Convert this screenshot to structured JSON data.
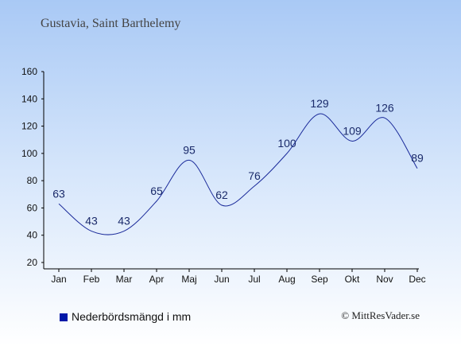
{
  "header": {
    "location": "Gustavia, Saint Barthelemy"
  },
  "legend": {
    "label": "Nederbördsmängd i mm"
  },
  "footer": {
    "copyright": "© MittResVader.se"
  },
  "colors": {
    "line": "#1a2a9a",
    "legend_swatch": "#0018a8",
    "axis": "#000000"
  },
  "chart_data": {
    "type": "line",
    "categories": [
      "Jan",
      "Feb",
      "Mar",
      "Apr",
      "Maj",
      "Jun",
      "Jul",
      "Aug",
      "Sep",
      "Okt",
      "Nov",
      "Dec"
    ],
    "series": [
      {
        "name": "Nederbördsmängd i mm",
        "values": [
          63,
          43,
          43,
          65,
          95,
          62,
          76,
          100,
          129,
          109,
          126,
          89
        ]
      }
    ],
    "yticks": [
      20,
      40,
      60,
      80,
      100,
      120,
      140,
      160
    ],
    "ylim": [
      15,
      160
    ],
    "data_labels": true,
    "grid": false,
    "legend_position": "bottom-left"
  }
}
